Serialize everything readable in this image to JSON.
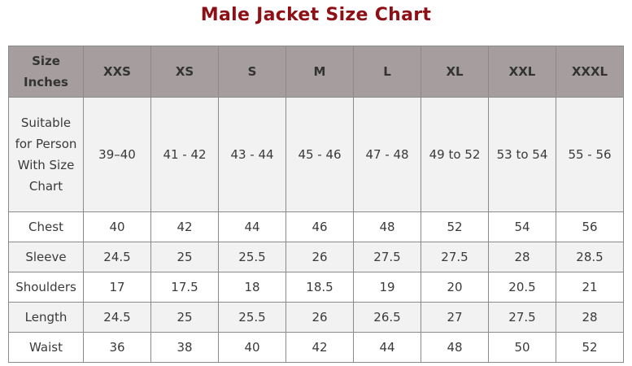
{
  "title": "Male Jacket Size Chart",
  "table": {
    "headers": [
      "Size Inches",
      "XXS",
      "XS",
      "S",
      "M",
      "L",
      "XL",
      "XXL",
      "XXXL"
    ],
    "rows": [
      [
        "Suitable for Person With Size Chart",
        "39–40",
        "41 - 42",
        "43 - 44",
        "45 - 46",
        "47 - 48",
        "49 to 52",
        "53 to 54",
        "55 - 56"
      ],
      [
        "Chest",
        "40",
        "42",
        "44",
        "46",
        "48",
        "52",
        "54",
        "56"
      ],
      [
        "Sleeve",
        "24.5",
        "25",
        "25.5",
        "26",
        "27.5",
        "27.5",
        "28",
        "28.5"
      ],
      [
        "Shoulders",
        "17",
        "17.5",
        "18",
        "18.5",
        "19",
        "20",
        "20.5",
        "21"
      ],
      [
        "Length",
        "24.5",
        "25",
        "25.5",
        "26",
        "26.5",
        "27",
        "27.5",
        "28"
      ],
      [
        "Waist",
        "36",
        "38",
        "40",
        "42",
        "44",
        "48",
        "50",
        "52"
      ]
    ]
  },
  "colors": {
    "title": "#8c1016",
    "header_bg": "#a69e9e",
    "stripe_bg": "#f2f2f2"
  }
}
